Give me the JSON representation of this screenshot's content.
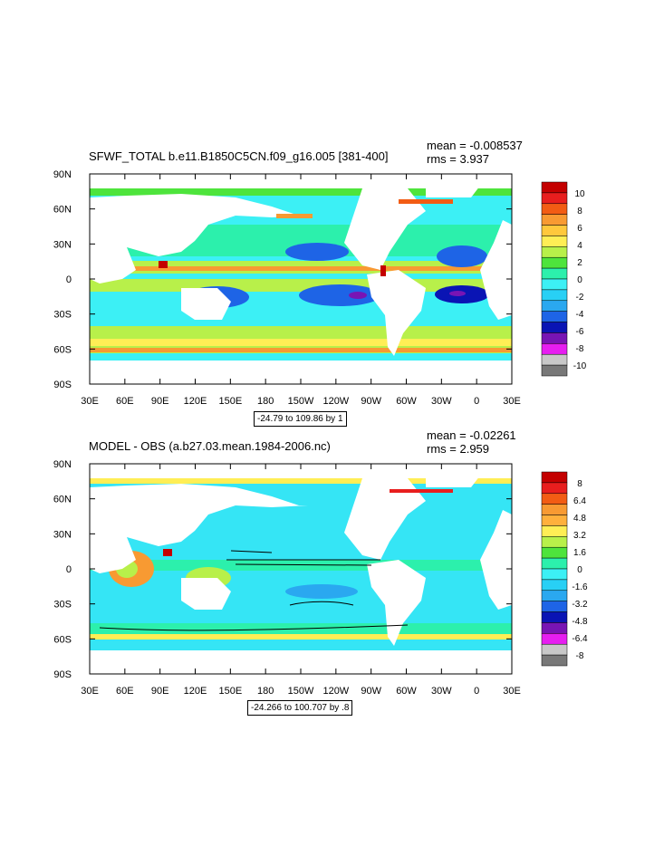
{
  "chart_data": [
    {
      "type": "heatmap",
      "title": "SFWF_TOTAL b.e11.B1850C5CN.f09_g16.005 [381-400]",
      "stats": {
        "mean_label": "mean = -0.008537",
        "rms_label": "rms = 3.937"
      },
      "contour_info": "-24.79 to 109.86 by 1",
      "x_ticks": [
        "30E",
        "60E",
        "90E",
        "120E",
        "150E",
        "180",
        "150W",
        "120W",
        "90W",
        "60W",
        "30W",
        "0",
        "30E"
      ],
      "y_ticks": [
        "90N",
        "60N",
        "30N",
        "0",
        "30S",
        "60S",
        "90S"
      ],
      "colorbar": {
        "labels": [
          "10",
          "8",
          "6",
          "4",
          "2",
          "0",
          "-2",
          "-4",
          "-6",
          "-8",
          "-10"
        ],
        "colors": [
          "#c40000",
          "#e81e1e",
          "#f25c14",
          "#f89a32",
          "#ffc83c",
          "#ffee55",
          "#b8f04a",
          "#4ee43c",
          "#2cf0ac",
          "#3cf0f5",
          "#28d0f5",
          "#2aa8f0",
          "#1e64e6",
          "#0a14b4",
          "#7814b4",
          "#e61ef0",
          "#c8c8c8",
          "#787878"
        ]
      }
    },
    {
      "type": "heatmap",
      "title": "MODEL - OBS (a.b27.03.mean.1984-2006.nc)",
      "stats": {
        "mean_label": "mean = -0.02261",
        "rms_label": "rms = 2.959"
      },
      "contour_info": "-24.266 to 100.707 by .8",
      "x_ticks": [
        "30E",
        "60E",
        "90E",
        "120E",
        "150E",
        "180",
        "150W",
        "120W",
        "90W",
        "60W",
        "30W",
        "0",
        "30E"
      ],
      "y_ticks": [
        "90N",
        "60N",
        "30N",
        "0",
        "30S",
        "60S",
        "90S"
      ],
      "colorbar": {
        "labels": [
          "8",
          "6.4",
          "4.8",
          "3.2",
          "1.6",
          "0",
          "-1.6",
          "-3.2",
          "-4.8",
          "-6.4",
          "-8"
        ],
        "colors": [
          "#c40000",
          "#e81e1e",
          "#f25c14",
          "#f89a32",
          "#ffb03c",
          "#ffee55",
          "#b8f04a",
          "#4ee43c",
          "#2cf0ac",
          "#3cf0f5",
          "#28d0f5",
          "#2aa8f0",
          "#1e64e6",
          "#0a14b4",
          "#7814b4",
          "#e61ef0",
          "#c8c8c8",
          "#787878"
        ]
      }
    }
  ]
}
